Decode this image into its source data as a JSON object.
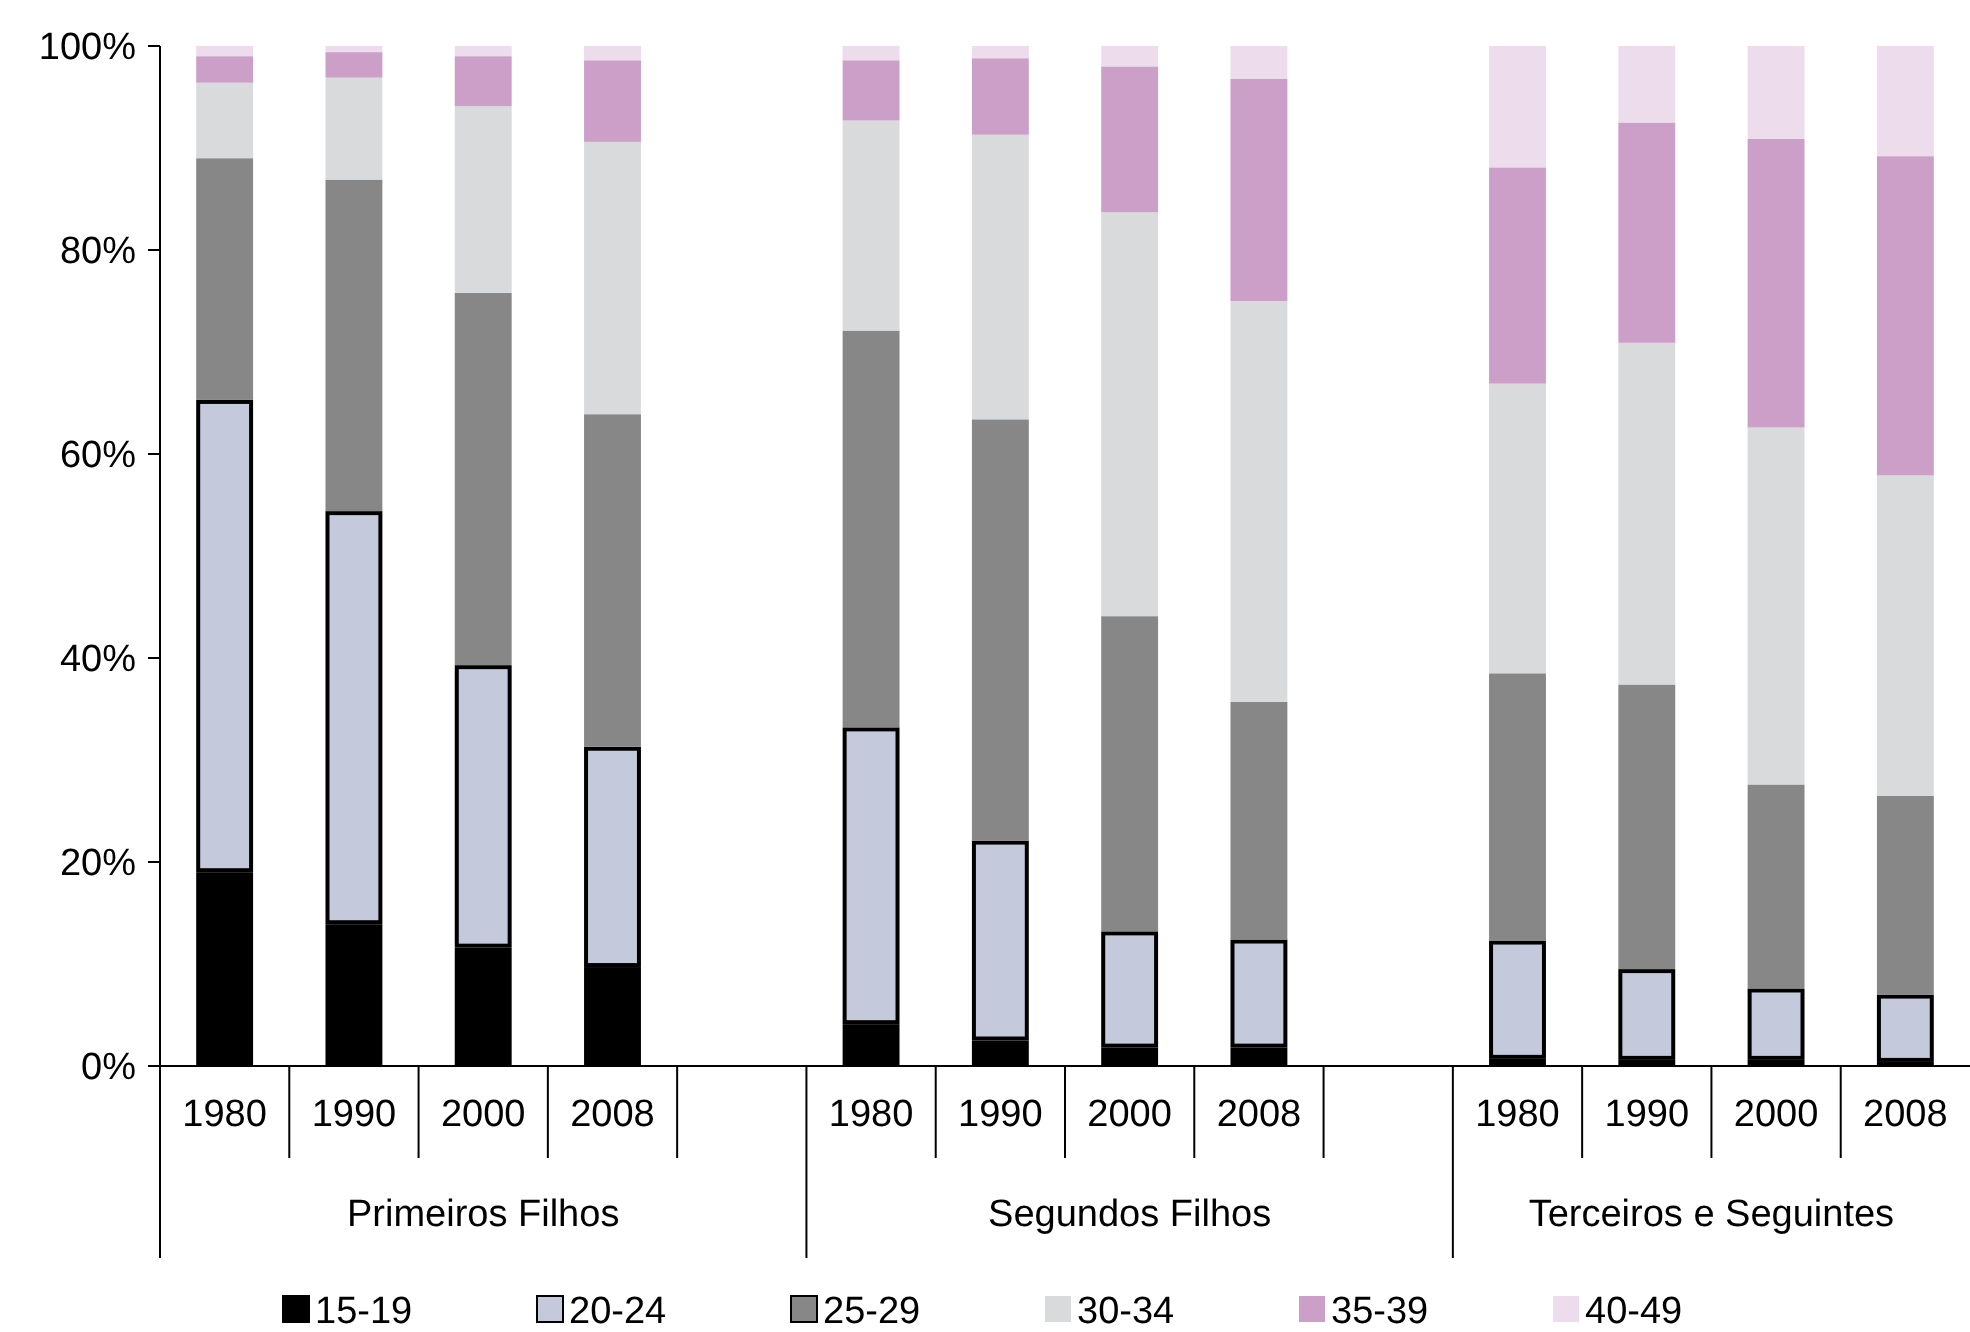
{
  "chart_data": {
    "type": "bar",
    "stacked": true,
    "categories": [
      "1980",
      "1990",
      "2000",
      "2008",
      null,
      "1980",
      "1990",
      "2000",
      "2008",
      null,
      "1980",
      "1990",
      "2000",
      "2008"
    ],
    "annotations": [
      "Primeiros Filhos",
      "Segundos Filhos",
      "Terceiros e Seguintes"
    ],
    "ylim": [
      0,
      100
    ],
    "yticks": [
      {
        "value": 0,
        "label": "0%"
      },
      {
        "value": 20,
        "label": "20%"
      },
      {
        "value": 40,
        "label": "40%"
      },
      {
        "value": 60,
        "label": "60%"
      },
      {
        "value": 80,
        "label": "80%"
      },
      {
        "value": 100,
        "label": "100%"
      }
    ],
    "grid": false,
    "legend": "bottom",
    "series": [
      {
        "name": "15-19",
        "color": "#000000",
        "values": [
          19.0,
          13.9,
          11.6,
          9.7,
          null,
          4.1,
          2.5,
          1.8,
          1.8,
          null,
          0.7,
          0.6,
          0.6,
          0.4
        ]
      },
      {
        "name": "20-24",
        "color": "#c5c9dc",
        "values": [
          46.3,
          40.5,
          27.7,
          21.6,
          null,
          29.1,
          19.6,
          11.4,
          10.6,
          null,
          11.6,
          8.9,
          7.0,
          6.6
        ]
      },
      {
        "name": "25-29",
        "color": "#878787",
        "values": [
          23.7,
          32.5,
          36.5,
          32.6,
          null,
          38.9,
          41.3,
          30.9,
          23.3,
          null,
          26.2,
          27.9,
          20.0,
          19.5
        ]
      },
      {
        "name": "30-34",
        "color": "#d9dadb",
        "values": [
          7.4,
          10.0,
          18.3,
          26.7,
          null,
          20.6,
          27.9,
          39.6,
          39.3,
          null,
          28.4,
          33.5,
          35.0,
          31.4
        ]
      },
      {
        "name": "35-39",
        "color": "#cc9fc8",
        "values": [
          2.6,
          2.5,
          4.9,
          8.0,
          null,
          5.9,
          7.5,
          14.3,
          21.8,
          null,
          21.2,
          21.6,
          28.3,
          31.3
        ]
      },
      {
        "name": "40-49",
        "color": "#ecdcec",
        "values": [
          1.0,
          0.6,
          1.0,
          1.4,
          null,
          1.4,
          1.2,
          2.0,
          3.2,
          null,
          11.9,
          7.5,
          9.1,
          10.8
        ]
      }
    ]
  }
}
